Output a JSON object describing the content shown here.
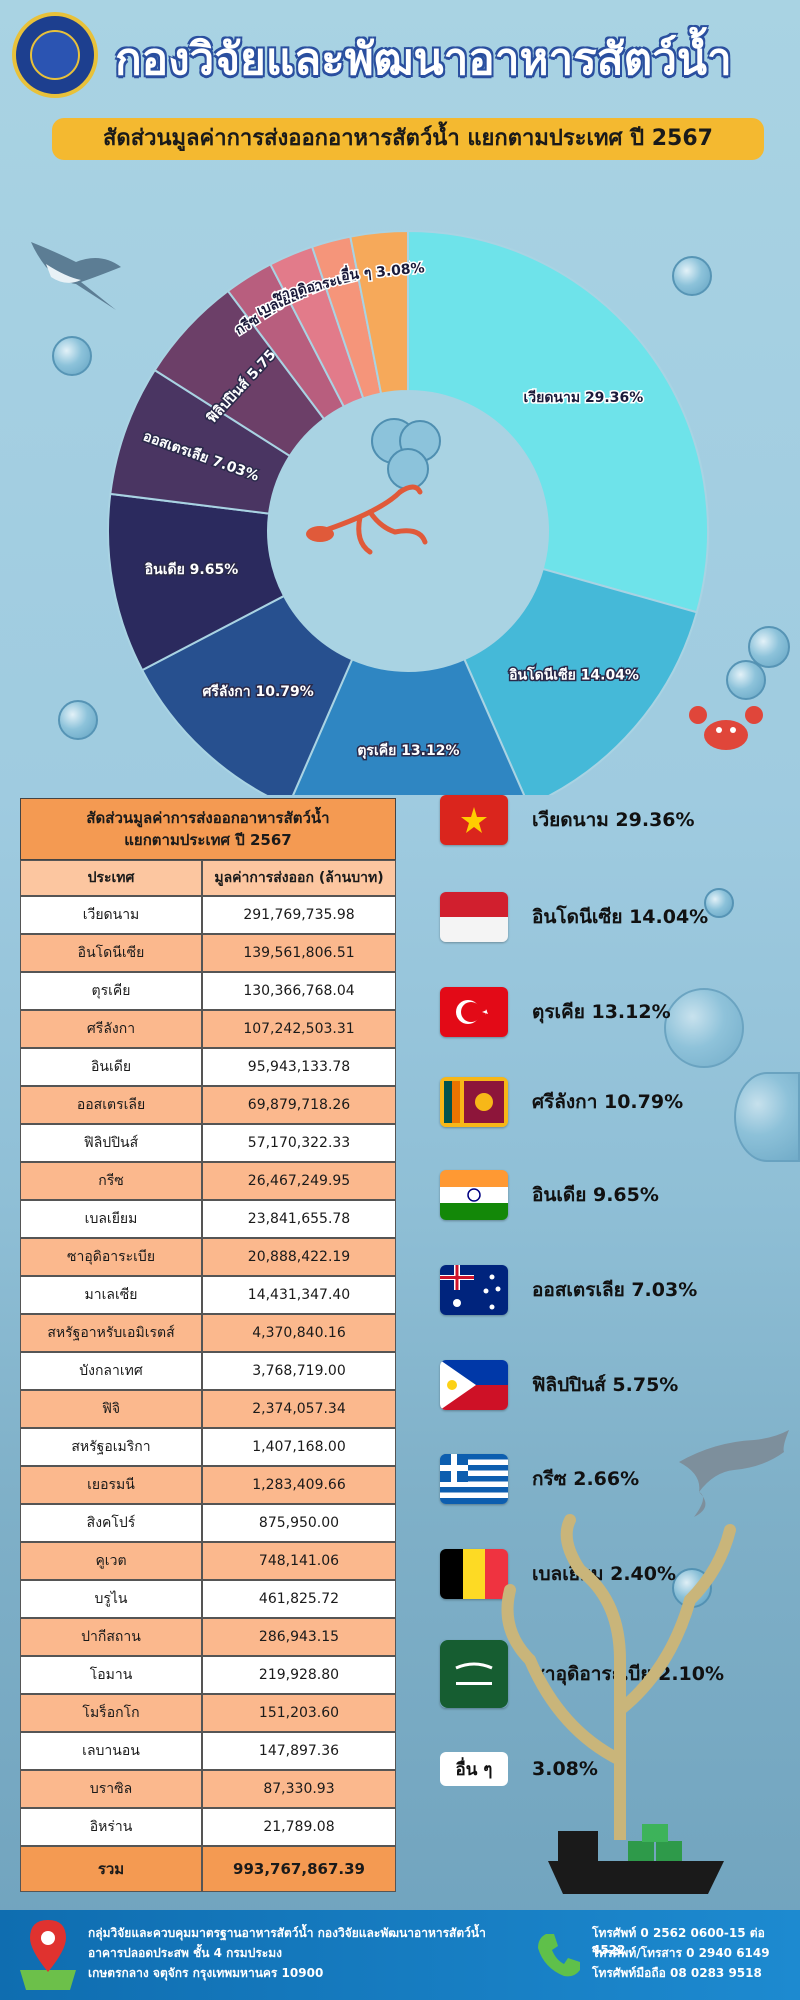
{
  "header": {
    "title": "กองวิจัยและพัฒนาอาหารสัตว์น้ำ",
    "subtitle": "สัดส่วนมูลค่าการส่งออกอาหารสัตว์น้ำ แยกตามประเทศ ปี 2567"
  },
  "chart_data": {
    "type": "pie",
    "title": "สัดส่วนมูลค่าการส่งออกอาหารสัตว์น้ำ แยกตามประเทศ ปี 2567",
    "labels": [
      "เวียดนาม 29.36%",
      "อินโดนีเซีย 14.04%",
      "ตุรเคีย 13.12%",
      "ศรีลังกา 10.79%",
      "อินเดีย 9.65%",
      "ออสเตรเลีย 7.03%",
      "ฟิลิปปินส์ 5.75%",
      "กรีซ 2.66%",
      "เบลเยี่ยม 2.40%",
      "ซาอุดิอาระเบีย 2.10%",
      "อื่น ๆ 3.08%"
    ],
    "values": [
      29.36,
      14.04,
      13.12,
      10.79,
      9.65,
      7.03,
      5.75,
      2.66,
      2.4,
      2.1,
      3.08
    ],
    "colors": [
      "#6ee3ea",
      "#45b9d8",
      "#2f86c2",
      "#27508f",
      "#2b2a5e",
      "#4a3562",
      "#6c3f68",
      "#b85e7e",
      "#e27b8a",
      "#f5957a",
      "#f6a95a"
    ]
  },
  "table": {
    "title_line1": "สัดส่วนมูลค่าการส่งออกอาหารสัตว์น้ำ",
    "title_line2": "แยกตามประเทศ ปี 2567",
    "col1": "ประเทศ",
    "col2": "มูลค่าการส่งออก (ล้านบาท)",
    "rows": [
      [
        "เวียดนาม",
        "291,769,735.98"
      ],
      [
        "อินโดนีเซีย",
        "139,561,806.51"
      ],
      [
        "ตุรเคีย",
        "130,366,768.04"
      ],
      [
        "ศรีลังกา",
        "107,242,503.31"
      ],
      [
        "อินเดีย",
        "95,943,133.78"
      ],
      [
        "ออสเตรเลีย",
        "69,879,718.26"
      ],
      [
        "ฟิลิปปินส์",
        "57,170,322.33"
      ],
      [
        "กรีซ",
        "26,467,249.95"
      ],
      [
        "เบลเยียม",
        "23,841,655.78"
      ],
      [
        "ซาอุดิอาระเบีย",
        "20,888,422.19"
      ],
      [
        "มาเลเซีย",
        "14,431,347.40"
      ],
      [
        "สหรัฐอาหรับเอมิเรตส์",
        "4,370,840.16"
      ],
      [
        "บังกลาเทศ",
        "3,768,719.00"
      ],
      [
        "ฟิจิ",
        "2,374,057.34"
      ],
      [
        "สหรัฐอเมริกา",
        "1,407,168.00"
      ],
      [
        "เยอรมนี",
        "1,283,409.66"
      ],
      [
        "สิงคโปร์",
        "875,950.00"
      ],
      [
        "คูเวต",
        "748,141.06"
      ],
      [
        "บรูไน",
        "461,825.72"
      ],
      [
        "ปากีสถาน",
        "286,943.15"
      ],
      [
        "โอมาน",
        "219,928.80"
      ],
      [
        "โมร็อกโก",
        "151,203.60"
      ],
      [
        "เลบานอน",
        "147,897.36"
      ],
      [
        "บราซิล",
        "87,330.93"
      ],
      [
        "อิหร่าน",
        "21,789.08"
      ]
    ],
    "total_label": "รวม",
    "total_value": "993,767,867.39"
  },
  "legend": [
    {
      "flag": "vietnam",
      "text": "เวียดนาม 29.36%"
    },
    {
      "flag": "indonesia",
      "text": "อินโดนีเซีย 14.04%"
    },
    {
      "flag": "turkey",
      "text": "ตุรเคีย 13.12%"
    },
    {
      "flag": "srilanka",
      "text": "ศรีลังกา 10.79%"
    },
    {
      "flag": "india",
      "text": "อินเดีย 9.65%"
    },
    {
      "flag": "australia",
      "text": "ออสเตรเลีย 7.03%"
    },
    {
      "flag": "philippines",
      "text": "ฟิลิปปินส์ 5.75%"
    },
    {
      "flag": "greece",
      "text": "กรีซ 2.66%"
    },
    {
      "flag": "belgium",
      "text": "เบลเยี่ยม 2.40%"
    },
    {
      "flag": "saudi",
      "text": "ซาอุดิอาระเบีย 2.10%"
    }
  ],
  "others": {
    "box": "อื่น ๆ",
    "value": "3.08%"
  },
  "footer": {
    "line1": "กลุ่มวิจัยและควบคุมมาตรฐานอาหารสัตว์น้ำ กองวิจัยและพัฒนาอาหารสัตว์น้ำ",
    "line2": "อาคารปลอดประสพ ชั้น 4 กรมประมง",
    "line3": "เกษตรกลาง จตุจักร กรุงเทพมหานคร 10900",
    "phone1": "โทรศัพท์ 0 2562 0600-15 ต่อ 4522",
    "phone2": "โทรศัพท์/โทรสาร 0 2940 6149",
    "phone3": "โทรศัพท์มือถือ 08 0283 9518"
  }
}
